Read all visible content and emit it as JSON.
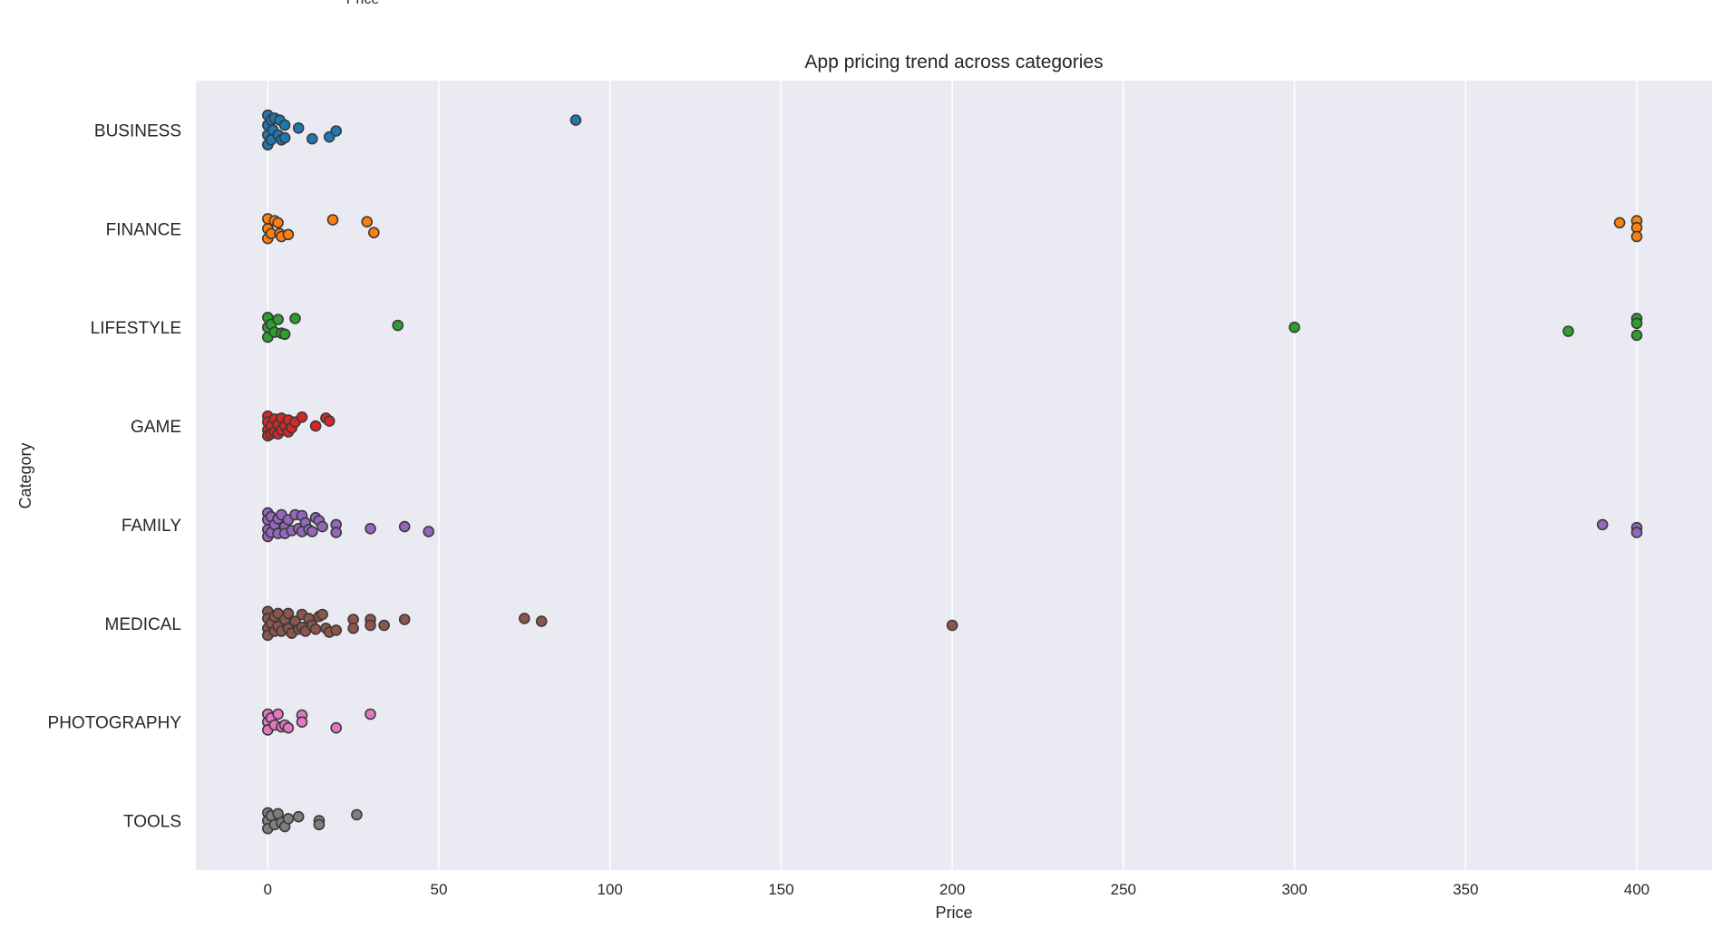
{
  "top_cut_text": "Price",
  "chart_data": {
    "type": "scatter",
    "title": "App pricing trend across categories",
    "xlabel": "Price",
    "ylabel": "Category",
    "xlim": [
      -21,
      422
    ],
    "xticks": [
      0,
      50,
      100,
      150,
      200,
      250,
      300,
      350,
      400
    ],
    "grid": "vertical",
    "categories": [
      "BUSINESS",
      "FINANCE",
      "LIFESTYLE",
      "GAME",
      "FAMILY",
      "MEDICAL",
      "PHOTOGRAPHY",
      "TOOLS"
    ],
    "colors": [
      "#1f77b4",
      "#ff7f0e",
      "#2ca02c",
      "#d62728",
      "#9467bd",
      "#8c564b",
      "#e377c2",
      "#7f7f7f"
    ],
    "series": [
      {
        "values": [
          [
            0,
            -0.15
          ],
          [
            0,
            -0.05
          ],
          [
            0,
            0.05
          ],
          [
            0,
            0.15
          ],
          [
            0.99,
            -0.1
          ],
          [
            0.99,
            0.1
          ],
          [
            1.5,
            0
          ],
          [
            2,
            -0.12
          ],
          [
            3,
            0.05
          ],
          [
            3.5,
            -0.1
          ],
          [
            4,
            0.1
          ],
          [
            5,
            -0.05
          ],
          [
            5,
            0.08
          ],
          [
            9,
            -0.02
          ],
          [
            13,
            0.09
          ],
          [
            18,
            0.07
          ],
          [
            20,
            0.01
          ],
          [
            90,
            -0.1
          ]
        ]
      },
      {
        "values": [
          [
            0,
            -0.1
          ],
          [
            0,
            0.0
          ],
          [
            0,
            0.1
          ],
          [
            1,
            0.05
          ],
          [
            2,
            -0.08
          ],
          [
            3,
            -0.06
          ],
          [
            3.5,
            0.05
          ],
          [
            4,
            0.08
          ],
          [
            6,
            0.06
          ],
          [
            19,
            -0.09
          ],
          [
            29,
            -0.07
          ],
          [
            31,
            0.04
          ],
          [
            395,
            -0.06
          ],
          [
            400,
            -0.08
          ],
          [
            400,
            -0.01
          ],
          [
            400,
            0.08
          ]
        ]
      },
      {
        "values": [
          [
            0,
            -0.1
          ],
          [
            0,
            0.0
          ],
          [
            0,
            0.1
          ],
          [
            1,
            -0.03
          ],
          [
            2,
            0.05
          ],
          [
            3,
            -0.08
          ],
          [
            4,
            0.06
          ],
          [
            5,
            0.07
          ],
          [
            8,
            -0.09
          ],
          [
            38,
            -0.02
          ],
          [
            300,
            0.0
          ],
          [
            380,
            0.04
          ],
          [
            400,
            -0.09
          ],
          [
            400,
            -0.04
          ],
          [
            400,
            0.08
          ]
        ]
      },
      {
        "values": [
          [
            0,
            -0.1
          ],
          [
            0,
            -0.04
          ],
          [
            0,
            0.04
          ],
          [
            0,
            0.1
          ],
          [
            1,
            0.0
          ],
          [
            1,
            0.08
          ],
          [
            2,
            -0.07
          ],
          [
            2,
            0.06
          ],
          [
            3,
            -0.02
          ],
          [
            3,
            0.08
          ],
          [
            4,
            -0.08
          ],
          [
            4,
            0.04
          ],
          [
            5,
            0.0
          ],
          [
            6,
            -0.06
          ],
          [
            6,
            0.06
          ],
          [
            7,
            0.02
          ],
          [
            8,
            -0.04
          ],
          [
            10,
            -0.09
          ],
          [
            14,
            0.0
          ],
          [
            17,
            -0.08
          ],
          [
            18,
            -0.05
          ]
        ]
      },
      {
        "values": [
          [
            0,
            -0.12
          ],
          [
            0,
            -0.05
          ],
          [
            0,
            0.05
          ],
          [
            0,
            0.12
          ],
          [
            1,
            -0.08
          ],
          [
            1,
            0.08
          ],
          [
            2,
            0.0
          ],
          [
            3,
            -0.06
          ],
          [
            3,
            0.09
          ],
          [
            4,
            -0.1
          ],
          [
            5,
            0.02
          ],
          [
            5,
            0.09
          ],
          [
            6,
            -0.05
          ],
          [
            7,
            0.06
          ],
          [
            8,
            -0.1
          ],
          [
            9,
            0.04
          ],
          [
            10,
            -0.09
          ],
          [
            10,
            0.07
          ],
          [
            11,
            -0.02
          ],
          [
            12,
            0.05
          ],
          [
            13,
            0.07
          ],
          [
            14,
            -0.07
          ],
          [
            15,
            -0.04
          ],
          [
            16,
            0.02
          ],
          [
            20,
            0.0
          ],
          [
            20,
            0.08
          ],
          [
            30,
            0.04
          ],
          [
            40,
            0.02
          ],
          [
            47,
            0.07
          ],
          [
            390,
            0.0
          ],
          [
            400,
            0.03
          ],
          [
            400,
            0.08
          ]
        ]
      },
      {
        "values": [
          [
            0,
            -0.12
          ],
          [
            0,
            -0.05
          ],
          [
            0,
            0.05
          ],
          [
            0,
            0.12
          ],
          [
            1,
            0.0
          ],
          [
            2,
            -0.07
          ],
          [
            2,
            0.08
          ],
          [
            3,
            -0.1
          ],
          [
            3,
            0.03
          ],
          [
            4,
            0.08
          ],
          [
            5,
            -0.04
          ],
          [
            6,
            -0.1
          ],
          [
            6,
            0.05
          ],
          [
            7,
            0.1
          ],
          [
            8,
            -0.02
          ],
          [
            9,
            0.06
          ],
          [
            10,
            -0.09
          ],
          [
            10,
            0.04
          ],
          [
            11,
            0.08
          ],
          [
            12,
            -0.05
          ],
          [
            13,
            0.02
          ],
          [
            14,
            0.06
          ],
          [
            15,
            -0.07
          ],
          [
            16,
            -0.09
          ],
          [
            17,
            0.05
          ],
          [
            18,
            0.09
          ],
          [
            20,
            0.07
          ],
          [
            25,
            -0.04
          ],
          [
            25,
            0.05
          ],
          [
            30,
            -0.04
          ],
          [
            30,
            0.02
          ],
          [
            34,
            0.02
          ],
          [
            40,
            -0.04
          ],
          [
            75,
            -0.05
          ],
          [
            80,
            -0.02
          ],
          [
            200,
            0.02
          ]
        ]
      },
      {
        "values": [
          [
            0,
            -0.08
          ],
          [
            0,
            0.0
          ],
          [
            0,
            0.08
          ],
          [
            1,
            -0.04
          ],
          [
            2,
            0.03
          ],
          [
            3,
            -0.08
          ],
          [
            4,
            0.05
          ],
          [
            5,
            0.03
          ],
          [
            6,
            0.06
          ],
          [
            10,
            -0.07
          ],
          [
            10,
            0.0
          ],
          [
            20,
            0.06
          ],
          [
            30,
            -0.08
          ]
        ]
      },
      {
        "values": [
          [
            0,
            -0.08
          ],
          [
            0,
            0.0
          ],
          [
            0,
            0.08
          ],
          [
            1,
            -0.05
          ],
          [
            2,
            0.04
          ],
          [
            3,
            -0.07
          ],
          [
            4,
            0.02
          ],
          [
            5,
            0.06
          ],
          [
            6,
            -0.02
          ],
          [
            9,
            -0.04
          ],
          [
            15,
            0.0
          ],
          [
            15,
            0.04
          ],
          [
            26,
            -0.06
          ]
        ]
      }
    ]
  }
}
